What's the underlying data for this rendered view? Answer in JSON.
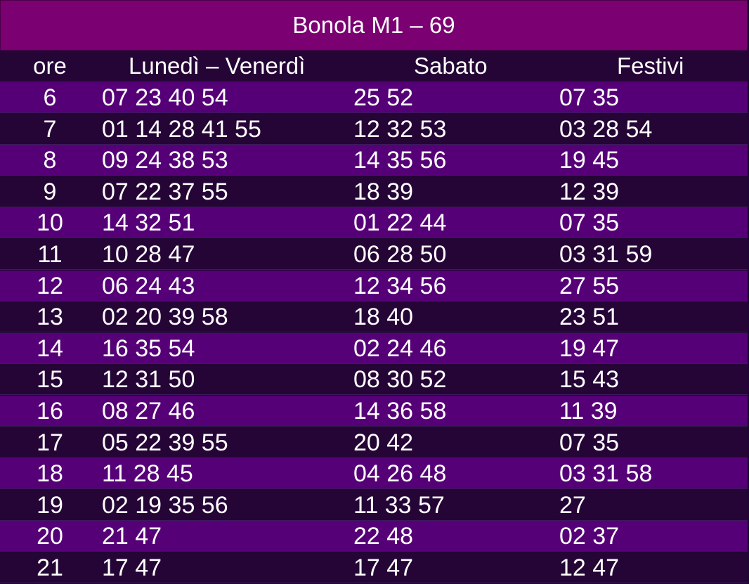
{
  "title": "Bonola M1 – 69",
  "columns": {
    "hour": "ore",
    "weekday": "Lunedì – Venerdì",
    "saturday": "Sabato",
    "holiday": "Festivi"
  },
  "rows": [
    {
      "hour": "6",
      "weekday": "07 23 40 54",
      "saturday": "25 52",
      "holiday": "07 35"
    },
    {
      "hour": "7",
      "weekday": "01 14 28 41 55",
      "saturday": "12 32 53",
      "holiday": "03 28 54"
    },
    {
      "hour": "8",
      "weekday": "09 24 38 53",
      "saturday": "14 35 56",
      "holiday": "19 45"
    },
    {
      "hour": "9",
      "weekday": "07 22 37 55",
      "saturday": "18 39",
      "holiday": "12 39"
    },
    {
      "hour": "10",
      "weekday": "14 32 51",
      "saturday": "01 22 44",
      "holiday": "07 35"
    },
    {
      "hour": "11",
      "weekday": "10 28 47",
      "saturday": "06 28 50",
      "holiday": "03 31 59"
    },
    {
      "hour": "12",
      "weekday": "06 24 43",
      "saturday": "12 34 56",
      "holiday": "27 55"
    },
    {
      "hour": "13",
      "weekday": "02 20 39 58",
      "saturday": "18 40",
      "holiday": "23 51"
    },
    {
      "hour": "14",
      "weekday": "16 35 54",
      "saturday": "02 24 46",
      "holiday": "19 47"
    },
    {
      "hour": "15",
      "weekday": "12 31 50",
      "saturday": "08 30 52",
      "holiday": "15 43"
    },
    {
      "hour": "16",
      "weekday": "08 27 46",
      "saturday": "14 36 58",
      "holiday": "11 39"
    },
    {
      "hour": "17",
      "weekday": "05 22 39 55",
      "saturday": "20 42",
      "holiday": "07 35"
    },
    {
      "hour": "18",
      "weekday": "11 28 45",
      "saturday": "04 26 48",
      "holiday": "03 31 58"
    },
    {
      "hour": "19",
      "weekday": "02 19 35 56",
      "saturday": "11 33 57",
      "holiday": "27"
    },
    {
      "hour": "20",
      "weekday": "21 47",
      "saturday": "22 48",
      "holiday": "02 37"
    },
    {
      "hour": "21",
      "weekday": "17 47",
      "saturday": "17 47",
      "holiday": "12 47"
    }
  ]
}
